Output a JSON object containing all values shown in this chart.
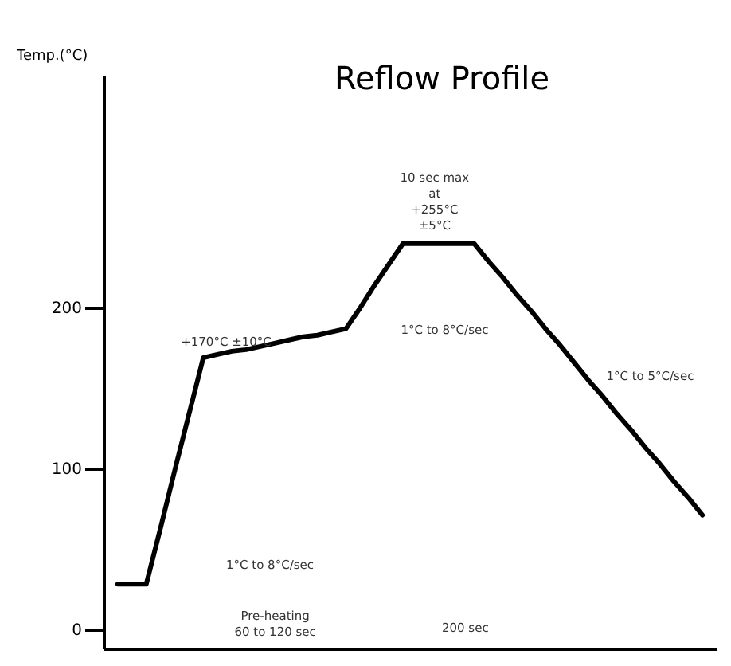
{
  "chart_data": {
    "type": "line",
    "title": "Reflow Profile",
    "ylabel": "Temp.(°C)",
    "categories": [
      null,
      null,
      null,
      null,
      null,
      null,
      null,
      null,
      null,
      null,
      null,
      null,
      null,
      null,
      null,
      null,
      null,
      null,
      null,
      null,
      null,
      null,
      null,
      null,
      null,
      null,
      null,
      null,
      null,
      null,
      null,
      null,
      null,
      null,
      null,
      null,
      null,
      null,
      null,
      null,
      null,
      null
    ],
    "series": [
      {
        "color": "#000000",
        "values": [
          28,
          28,
          28,
          63,
          99,
          134,
          169,
          171,
          173,
          174,
          176,
          178,
          180,
          182,
          183,
          185,
          187,
          200,
          214,
          227,
          240,
          240,
          240,
          240,
          240,
          240,
          229,
          219,
          208,
          198,
          187,
          177,
          166,
          155,
          145,
          134,
          124,
          113,
          103,
          92,
          82,
          71
        ]
      }
    ],
    "ylim": [
      -12,
      345
    ],
    "yticks": [
      0,
      100,
      200
    ],
    "tick_labels": "y",
    "grid": false,
    "marker": "none",
    "line_style": "solid",
    "annotations": [
      "+170°C ±10°C",
      "1°C to 8°C/sec",
      "1°C to 8°C/sec",
      "1°C to 5°C/sec",
      "10 sec max\nat\n+255°C\n±5°C",
      "Pre-heating\n60 to 120 sec",
      "200 sec"
    ]
  }
}
